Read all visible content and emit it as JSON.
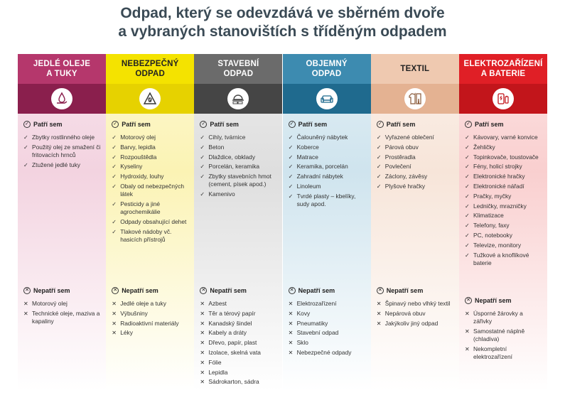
{
  "title_line1": "Odpad, který se odevzdává ve sběrném dvoře",
  "title_line2": "a vybraných stanovištích s tříděným odpadem",
  "yes_label": "Patří sem",
  "no_label": "Nepatří sem",
  "columns": [
    {
      "head_line1": "JEDLÉ OLEJE",
      "head_line2": "A TUKY",
      "icon": "oil-pan-icon",
      "colors": {
        "head": "#b5376c",
        "band": "#8a1f4d",
        "head_text": "#ffffff",
        "body_top": "#f7e3ec",
        "body_bottom": "#f3d3e0"
      },
      "yes": [
        "Zbytky rostlinného oleje",
        "Použitý olej ze smažení či fritovacích hrnců",
        "Ztužené jedlé tuky"
      ],
      "no": [
        "Motorový olej",
        "Technické oleje, maziva a kapaliny"
      ]
    },
    {
      "head_line1": "NEBEZPEČNÝ",
      "head_line2": "ODPAD",
      "icon": "hazard-icon",
      "colors": {
        "head": "#f4e300",
        "band": "#e6d200",
        "head_text": "#222222",
        "body_top": "#fdf8d2",
        "body_bottom": "#fbf3b4"
      },
      "yes": [
        "Motorový olej",
        "Barvy, lepidla",
        "Rozpouštědla",
        "Kyseliny",
        "Hydroxidy, louhy",
        "Obaly od nebezpečných látek",
        "Pesticidy a jiné agrochemikálie",
        "Odpady obsahující dehet",
        "Tlakové nádoby vč. hasicích přístrojů"
      ],
      "no": [
        "Jedlé oleje a tuky",
        "Výbušniny",
        "Radioaktivní materiály",
        "Léky"
      ]
    },
    {
      "head_line1": "STAVEBNÍ",
      "head_line2": "ODPAD",
      "icon": "bricks-helmet-icon",
      "colors": {
        "head": "#6b6b6b",
        "band": "#454545",
        "head_text": "#ffffff",
        "body_top": "#ececec",
        "body_bottom": "#dedede"
      },
      "yes": [
        "Cihly, tvárnice",
        "Beton",
        "Dlaždice, obklady",
        "Porcelán, keramika",
        "Zbytky stavebních hmot (cement, písek apod.)",
        "Kamenivo"
      ],
      "no": [
        "Azbest",
        "Těr a térový papír",
        "Kanadský šindel",
        "Kabely a dráty",
        "Dřevo, papír, plast",
        "Izolace, skelná vata",
        "Fólie",
        "Lepidla",
        "Sádrokarton, sádra"
      ]
    },
    {
      "head_line1": "OBJEMNÝ",
      "head_line2": "ODPAD",
      "icon": "sofa-icon",
      "colors": {
        "head": "#3d8bb0",
        "band": "#1f6a8e",
        "head_text": "#ffffff",
        "body_top": "#e2eff5",
        "body_bottom": "#cfe4ee"
      },
      "yes": [
        "Čalouněný nábytek",
        "Koberce",
        "Matrace",
        "Keramika, porcelán",
        "Zahradní nábytek",
        "Linoleum",
        "Tvrdé plasty – kbelíky, sudy apod."
      ],
      "no": [
        "Elektrozařízení",
        "Kovy",
        "Pneumatiky",
        "Stavební odpad",
        "Sklo",
        "Nebezpečné odpady"
      ]
    },
    {
      "head_line1": "TEXTIL",
      "head_line2": "",
      "icon": "clothes-icon",
      "colors": {
        "head": "#efc9b0",
        "band": "#e4b292",
        "head_text": "#222222",
        "body_top": "#fbf0e9",
        "body_bottom": "#f7e5d9"
      },
      "yes": [
        "Vyřazené oblečení",
        "Párová obuv",
        "Prostěradla",
        "Povlečení",
        "Záclony, závěsy",
        "Plyšové hračky"
      ],
      "no": [
        "Špinavý nebo vlhký textil",
        "Nepárová obuv",
        "Jakýkoliv jiný odpad"
      ]
    },
    {
      "head_line1": "ELEKTROZAŘÍZENÍ",
      "head_line2": "A BATERIE",
      "icon": "phone-battery-icon",
      "colors": {
        "head": "#e01f26",
        "band": "#c2151b",
        "head_text": "#ffffff",
        "body_top": "#fde3e3",
        "body_bottom": "#f9cfcf"
      },
      "yes": [
        "Kávovary, varné konvice",
        "Žehličky",
        "Topinkovače, toustovače",
        "Fény, holicí strojky",
        "Elektronické hračky",
        "Elektronické nářadí",
        "Pračky, myčky",
        "Ledničky, mrazničky",
        "Klimatizace",
        "Telefony, faxy",
        "PC, notebooky",
        "Televize, monitory",
        "Tužkové a knoflíkové baterie"
      ],
      "no": [
        "Úsporné žárovky a zářivky",
        "Samostatné náplně (chladiva)",
        "Nekompletní elektrozařízení"
      ]
    }
  ]
}
